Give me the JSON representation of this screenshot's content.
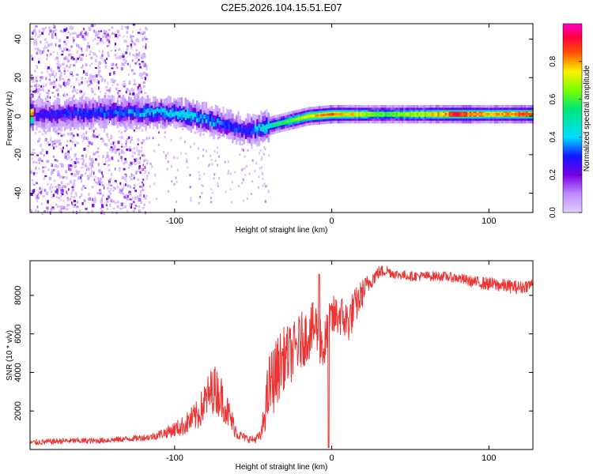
{
  "title": "C2E5.2026.104.15.51.E07",
  "chart_data": [
    {
      "type": "heatmap",
      "name": "spectrogram",
      "xlabel": "Height of straight line (km)",
      "ylabel": "Frequency (Hz)",
      "xlim": [
        -192,
        128
      ],
      "ylim": [
        -50,
        48
      ],
      "xticks": [
        -100,
        0,
        100
      ],
      "yticks": [
        -40,
        -20,
        0,
        20,
        40
      ],
      "colorbar": {
        "label": "Normalized spectral amplitude",
        "range": [
          0,
          1
        ],
        "ticks": [
          0.0,
          0.2,
          0.4,
          0.6,
          0.8
        ]
      },
      "ridge": [
        {
          "x": -190,
          "f": 1,
          "amp": 0.25
        },
        {
          "x": -170,
          "f": 1,
          "amp": 0.3
        },
        {
          "x": -150,
          "f": 2,
          "amp": 0.32
        },
        {
          "x": -130,
          "f": 2,
          "amp": 0.35
        },
        {
          "x": -110,
          "f": 2,
          "amp": 0.4
        },
        {
          "x": -95,
          "f": 1,
          "amp": 0.45
        },
        {
          "x": -80,
          "f": -2,
          "amp": 0.38
        },
        {
          "x": -65,
          "f": -5,
          "amp": 0.32
        },
        {
          "x": -55,
          "f": -8,
          "amp": 0.3
        },
        {
          "x": -45,
          "f": -6,
          "amp": 0.45
        },
        {
          "x": -30,
          "f": -3,
          "amp": 0.6
        },
        {
          "x": -15,
          "f": 0,
          "amp": 0.75
        },
        {
          "x": 0,
          "f": 1,
          "amp": 0.85
        },
        {
          "x": 30,
          "f": 1,
          "amp": 0.6
        },
        {
          "x": 60,
          "f": 1,
          "amp": 0.7
        },
        {
          "x": 80,
          "f": 1,
          "amp": 0.9
        },
        {
          "x": 100,
          "f": 1,
          "amp": 0.75
        },
        {
          "x": 128,
          "f": 1,
          "amp": 0.85
        }
      ]
    },
    {
      "type": "line",
      "name": "snr",
      "xlabel": "Height of straight line (km)",
      "ylabel": "SNR (10 * v/v)",
      "xlim": [
        -192,
        128
      ],
      "ylim": [
        0,
        9800
      ],
      "xticks": [
        -100,
        0,
        100
      ],
      "yticks": [
        2000,
        4000,
        6000,
        8000
      ],
      "color": "#ee3333",
      "x": [
        -192,
        -170,
        -150,
        -130,
        -115,
        -105,
        -95,
        -85,
        -80,
        -75,
        -70,
        -65,
        -60,
        -55,
        -50,
        -45,
        -40,
        -35,
        -32,
        -30,
        -25,
        -20,
        -15,
        -10,
        -8,
        -5,
        -3,
        0,
        5,
        10,
        15,
        20,
        25,
        30,
        35,
        40,
        50,
        60,
        70,
        80,
        90,
        100,
        110,
        120,
        128
      ],
      "y": [
        350,
        450,
        450,
        550,
        650,
        900,
        1200,
        1800,
        2600,
        3200,
        2700,
        1700,
        800,
        600,
        500,
        700,
        3200,
        4000,
        4600,
        4800,
        5000,
        5600,
        6000,
        6400,
        6000,
        5200,
        5800,
        6800,
        7000,
        6600,
        7400,
        8200,
        8800,
        9200,
        9300,
        9100,
        9000,
        9000,
        9000,
        8900,
        8700,
        8600,
        8500,
        8400,
        8600
      ],
      "noise": [
        150,
        150,
        150,
        150,
        180,
        300,
        500,
        800,
        1100,
        1300,
        1100,
        800,
        300,
        200,
        200,
        300,
        1800,
        1800,
        1700,
        1600,
        1500,
        1500,
        1400,
        1400,
        1500,
        1500,
        1400,
        1200,
        1100,
        1200,
        1000,
        700,
        450,
        350,
        300,
        250,
        250,
        250,
        250,
        250,
        300,
        350,
        350,
        350,
        300
      ]
    }
  ]
}
